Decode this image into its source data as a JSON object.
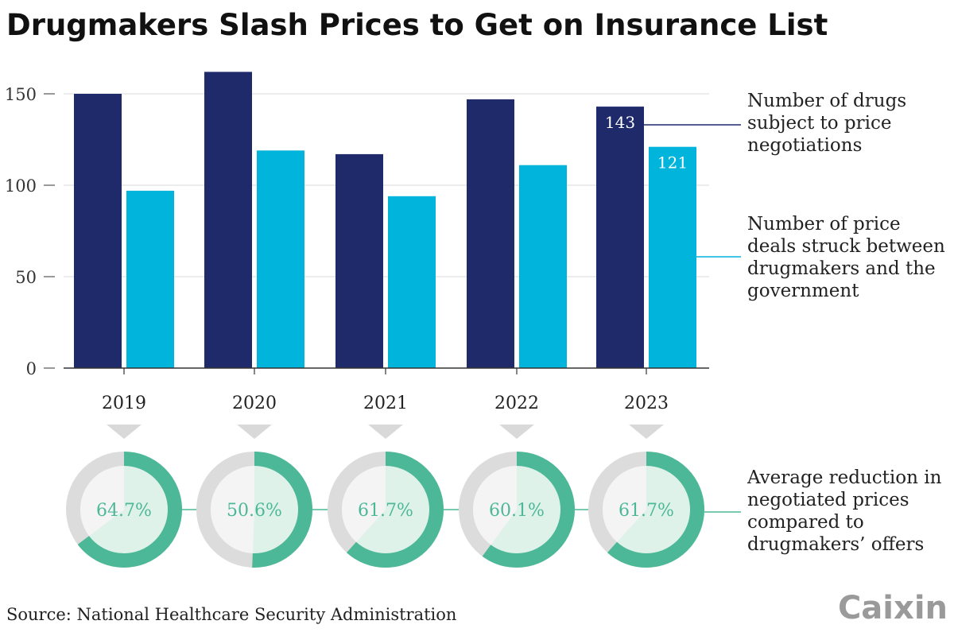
{
  "chart_data": {
    "type": "bar",
    "title": "Drugmakers Slash Prices to Get on Insurance List",
    "categories": [
      "2019",
      "2020",
      "2021",
      "2022",
      "2023"
    ],
    "series": [
      {
        "name": "Number of drugs subject to price negotiations",
        "values": [
          150,
          162,
          117,
          147,
          143
        ],
        "color": "#1f2a6b"
      },
      {
        "name": "Number of price deals struck between drugmakers and the government",
        "values": [
          97,
          119,
          94,
          111,
          121
        ],
        "color": "#00b4db"
      }
    ],
    "data_labels": {
      "2023_drugs": "143",
      "2023_deals": "121"
    },
    "yticks": [
      "0",
      "50",
      "100",
      "150"
    ],
    "ylim": [
      0,
      150
    ],
    "grid": true,
    "legend_lines": {
      "drugs": [
        "Number of drugs",
        "subject to price",
        "negotiations"
      ],
      "deals": [
        "Number of price",
        "deals struck between",
        "drugmakers and the",
        "government"
      ],
      "reduction": [
        "Average reduction in",
        "negotiated prices",
        "compared to",
        "drugmakers’ offers"
      ]
    },
    "reductions": {
      "values": [
        64.7,
        50.6,
        61.7,
        60.1,
        61.7
      ],
      "labels": [
        "64.7%",
        "50.6%",
        "61.7%",
        "60.1%",
        "61.7%"
      ],
      "color": "#4cb897",
      "track_color": "#dcdcdc"
    }
  },
  "source": "Source: National Healthcare Security Administration",
  "logo": "Caixin"
}
